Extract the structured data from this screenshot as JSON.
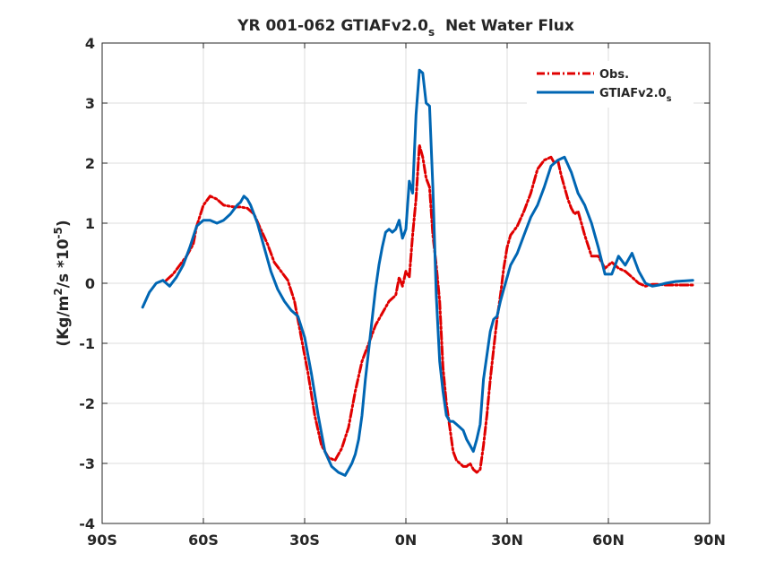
{
  "chart_data": {
    "type": "line",
    "title": {
      "main": "YR 001-062 GTIAFv2.0",
      "sub": "s",
      "tail": "  Net Water Flux"
    },
    "xlabel": "",
    "ylabel": {
      "a": "(Kg/m",
      "sup1": "2",
      "b": "/s *10",
      "sup2": "-5",
      "c": ")"
    },
    "xlim": [
      -90,
      90
    ],
    "ylim": [
      -4,
      4
    ],
    "grid": true,
    "legend_position": "top-right",
    "xticks": [
      {
        "value": -90,
        "label": "90S"
      },
      {
        "value": -60,
        "label": "60S"
      },
      {
        "value": -30,
        "label": "30S"
      },
      {
        "value": 0,
        "label": "0N"
      },
      {
        "value": 30,
        "label": "30N"
      },
      {
        "value": 60,
        "label": "60N"
      },
      {
        "value": 90,
        "label": "90N"
      }
    ],
    "yticks": [
      {
        "value": -4,
        "label": "-4"
      },
      {
        "value": -3,
        "label": "-3"
      },
      {
        "value": -2,
        "label": "-2"
      },
      {
        "value": -1,
        "label": "-1"
      },
      {
        "value": 0,
        "label": "0"
      },
      {
        "value": 1,
        "label": "1"
      },
      {
        "value": 2,
        "label": "2"
      },
      {
        "value": 3,
        "label": "3"
      },
      {
        "value": 4,
        "label": "4"
      }
    ],
    "series": [
      {
        "name": "Obs.",
        "name_sub": "",
        "color": "#e00000",
        "dash": "9,3,2,3",
        "x": [
          -71,
          -69,
          -67,
          -65,
          -63,
          -62,
          -60,
          -58,
          -56,
          -54,
          -51,
          -49,
          -47,
          -45,
          -43,
          -41,
          -39,
          -37,
          -35,
          -33,
          -31,
          -29,
          -27,
          -25,
          -23,
          -21,
          -19,
          -17,
          -15,
          -13,
          -11,
          -9,
          -7,
          -5,
          -3,
          -2,
          -1,
          0,
          1,
          2,
          3,
          4,
          5,
          6,
          7,
          8,
          9,
          10,
          11,
          12,
          13,
          14,
          15,
          16,
          17,
          18,
          19,
          20,
          21,
          22,
          23,
          24,
          25,
          26,
          27,
          28,
          29,
          30,
          31,
          33,
          35,
          37,
          39,
          41,
          43,
          44,
          45,
          46,
          47,
          48,
          49,
          50,
          51,
          52,
          53,
          55,
          57,
          59,
          61,
          63,
          65,
          67,
          69,
          71,
          73,
          75,
          77,
          80,
          85
        ],
        "y": [
          0.05,
          0.15,
          0.3,
          0.45,
          0.65,
          0.95,
          1.3,
          1.45,
          1.4,
          1.3,
          1.27,
          1.27,
          1.25,
          1.15,
          0.9,
          0.65,
          0.35,
          0.2,
          0.05,
          -0.3,
          -0.9,
          -1.5,
          -2.2,
          -2.7,
          -2.9,
          -2.95,
          -2.75,
          -2.4,
          -1.8,
          -1.3,
          -1.0,
          -0.7,
          -0.5,
          -0.3,
          -0.2,
          0.1,
          -0.05,
          0.2,
          0.1,
          0.8,
          1.4,
          2.3,
          2.1,
          1.75,
          1.6,
          0.8,
          0.3,
          -0.3,
          -1.4,
          -2.0,
          -2.4,
          -2.8,
          -2.95,
          -3.0,
          -3.05,
          -3.05,
          -3.0,
          -3.1,
          -3.15,
          -3.1,
          -2.7,
          -2.2,
          -1.6,
          -1.1,
          -0.6,
          -0.2,
          0.25,
          0.6,
          0.8,
          0.95,
          1.2,
          1.5,
          1.9,
          2.05,
          2.1,
          2.0,
          2.05,
          1.8,
          1.6,
          1.4,
          1.25,
          1.15,
          1.2,
          1.0,
          0.8,
          0.45,
          0.45,
          0.25,
          0.35,
          0.25,
          0.2,
          0.1,
          0.0,
          -0.05,
          -0.02,
          -0.02,
          -0.03,
          -0.03,
          -0.03
        ]
      },
      {
        "name": "GTIAFv2.0",
        "name_sub": "s",
        "color": "#0066b3",
        "dash": "",
        "x": [
          -78,
          -76,
          -74,
          -72,
          -70,
          -68,
          -66,
          -64,
          -62,
          -60,
          -58,
          -56,
          -54,
          -52,
          -50,
          -49,
          -48,
          -47,
          -46,
          -44,
          -42,
          -40,
          -38,
          -36,
          -34,
          -32,
          -30,
          -28,
          -26,
          -24,
          -22,
          -20,
          -18,
          -17,
          -16,
          -15,
          -14,
          -13,
          -12,
          -11,
          -10,
          -9,
          -8,
          -7,
          -6,
          -5,
          -4,
          -3,
          -2,
          -1,
          0,
          1,
          2,
          3,
          4,
          5,
          6,
          7,
          8,
          9,
          10,
          11,
          12,
          13,
          14,
          15,
          16,
          17,
          18,
          19,
          20,
          21,
          22,
          23,
          24,
          25,
          26,
          27,
          28,
          29,
          30,
          31,
          33,
          35,
          37,
          39,
          41,
          43,
          45,
          47,
          49,
          51,
          53,
          55,
          57,
          59,
          61,
          63,
          65,
          67,
          69,
          71,
          73,
          75,
          77,
          80,
          85
        ],
        "y": [
          -0.4,
          -0.15,
          0.0,
          0.05,
          -0.05,
          0.1,
          0.3,
          0.6,
          0.95,
          1.05,
          1.05,
          1.0,
          1.05,
          1.15,
          1.3,
          1.35,
          1.45,
          1.4,
          1.3,
          1.0,
          0.6,
          0.2,
          -0.1,
          -0.3,
          -0.45,
          -0.55,
          -0.9,
          -1.5,
          -2.2,
          -2.8,
          -3.05,
          -3.15,
          -3.2,
          -3.1,
          -3.0,
          -2.85,
          -2.6,
          -2.2,
          -1.6,
          -1.1,
          -0.6,
          -0.1,
          0.3,
          0.6,
          0.85,
          0.9,
          0.85,
          0.9,
          1.05,
          0.75,
          0.9,
          1.7,
          1.5,
          2.8,
          3.55,
          3.5,
          3.0,
          2.95,
          1.6,
          -0.2,
          -1.3,
          -1.8,
          -2.2,
          -2.3,
          -2.3,
          -2.35,
          -2.4,
          -2.45,
          -2.6,
          -2.7,
          -2.8,
          -2.6,
          -2.35,
          -1.6,
          -1.2,
          -0.8,
          -0.6,
          -0.55,
          -0.3,
          -0.1,
          0.1,
          0.3,
          0.5,
          0.8,
          1.1,
          1.3,
          1.6,
          1.95,
          2.05,
          2.1,
          1.85,
          1.5,
          1.3,
          1.0,
          0.6,
          0.15,
          0.15,
          0.45,
          0.3,
          0.5,
          0.2,
          0.0,
          -0.05,
          -0.03,
          0.0,
          0.03,
          0.05
        ]
      }
    ]
  }
}
